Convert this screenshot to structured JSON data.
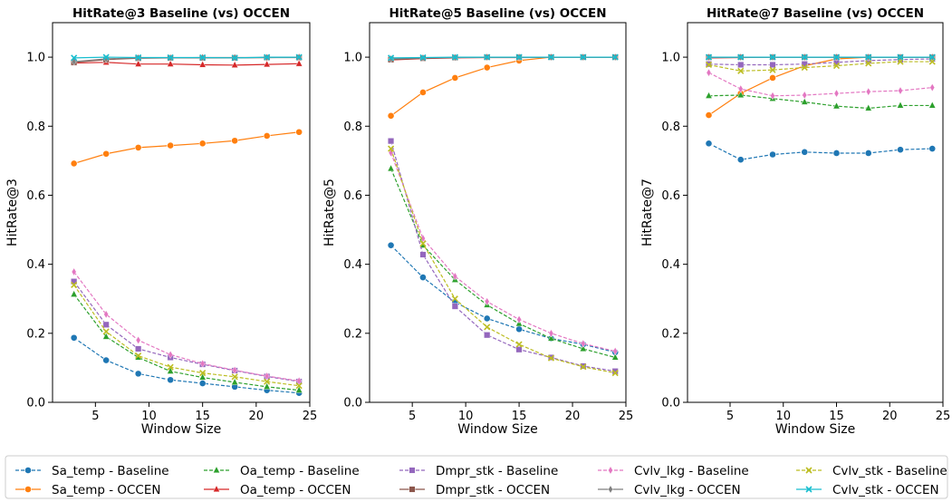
{
  "chart_data": [
    {
      "type": "line",
      "title": "HitRate@3 Baseline (vs) OCCEN",
      "xlabel": "Window Size",
      "ylabel": "HitRate@3",
      "xlim": [
        1,
        25
      ],
      "ylim": [
        0,
        1.1
      ],
      "xticks": [
        "5",
        "10",
        "15",
        "20",
        "25"
      ],
      "yticks": [
        "0.0",
        "0.2",
        "0.4",
        "0.6",
        "0.8",
        "1.0"
      ],
      "x": [
        3,
        6,
        9,
        12,
        15,
        18,
        21,
        24
      ],
      "series": [
        {
          "name": "Sa_temp - Baseline",
          "values": [
            0.187,
            0.122,
            0.083,
            0.065,
            0.055,
            0.045,
            0.035,
            0.027
          ]
        },
        {
          "name": "Sa_temp - OCCEN",
          "values": [
            0.692,
            0.72,
            0.738,
            0.744,
            0.75,
            0.758,
            0.772,
            0.783
          ]
        },
        {
          "name": "Oa_temp - Baseline",
          "values": [
            0.313,
            0.19,
            0.13,
            0.09,
            0.072,
            0.058,
            0.045,
            0.035
          ]
        },
        {
          "name": "Oa_temp - OCCEN",
          "values": [
            0.983,
            0.985,
            0.98,
            0.98,
            0.978,
            0.977,
            0.979,
            0.981
          ]
        },
        {
          "name": "Dmpr_stk - Baseline",
          "values": [
            0.35,
            0.225,
            0.155,
            0.13,
            0.11,
            0.092,
            0.075,
            0.06
          ]
        },
        {
          "name": "Dmpr_stk - OCCEN",
          "values": [
            0.985,
            0.993,
            0.997,
            0.998,
            0.998,
            0.998,
            0.999,
            0.999
          ]
        },
        {
          "name": "Cvlv_lkg - Baseline",
          "values": [
            0.378,
            0.255,
            0.18,
            0.138,
            0.112,
            0.093,
            0.076,
            0.062
          ]
        },
        {
          "name": "Cvlv_lkg - OCCEN",
          "values": [
            0.987,
            0.995,
            0.998,
            0.998,
            0.999,
            0.999,
            0.999,
            1.0
          ]
        },
        {
          "name": "Cvlv_stk - Baseline",
          "values": [
            0.34,
            0.205,
            0.135,
            0.102,
            0.085,
            0.074,
            0.06,
            0.048
          ]
        },
        {
          "name": "Cvlv_stk - OCCEN",
          "values": [
            0.998,
            1.0,
            0.999,
            0.999,
            0.999,
            0.998,
            1.0,
            1.0
          ]
        }
      ]
    },
    {
      "type": "line",
      "title": "HitRate@5 Baseline (vs) OCCEN",
      "xlabel": "Window Size",
      "ylabel": "HitRate@5",
      "xlim": [
        1,
        25
      ],
      "ylim": [
        0,
        1.1
      ],
      "xticks": [
        "5",
        "10",
        "15",
        "20",
        "25"
      ],
      "yticks": [
        "0.0",
        "0.2",
        "0.4",
        "0.6",
        "0.8",
        "1.0"
      ],
      "x": [
        3,
        6,
        9,
        12,
        15,
        18,
        21,
        24
      ],
      "series": [
        {
          "name": "Sa_temp - Baseline",
          "values": [
            0.455,
            0.362,
            0.29,
            0.243,
            0.212,
            0.185,
            0.168,
            0.145
          ]
        },
        {
          "name": "Sa_temp - OCCEN",
          "values": [
            0.83,
            0.898,
            0.94,
            0.97,
            0.99,
            1.0,
            1.0,
            1.0
          ]
        },
        {
          "name": "Oa_temp - Baseline",
          "values": [
            0.677,
            0.455,
            0.355,
            0.282,
            0.228,
            0.185,
            0.155,
            0.13
          ]
        },
        {
          "name": "Oa_temp - OCCEN",
          "values": [
            0.992,
            0.996,
            0.998,
            0.999,
            0.999,
            1.0,
            1.0,
            1.0
          ]
        },
        {
          "name": "Dmpr_stk - Baseline",
          "values": [
            0.757,
            0.428,
            0.278,
            0.195,
            0.153,
            0.13,
            0.105,
            0.09
          ]
        },
        {
          "name": "Dmpr_stk - OCCEN",
          "values": [
            0.993,
            0.997,
            0.999,
            1.0,
            1.0,
            1.0,
            1.0,
            1.0
          ]
        },
        {
          "name": "Cvlv_lkg - Baseline",
          "values": [
            0.723,
            0.475,
            0.365,
            0.292,
            0.24,
            0.2,
            0.17,
            0.148
          ]
        },
        {
          "name": "Cvlv_lkg - OCCEN",
          "values": [
            0.995,
            0.998,
            0.999,
            1.0,
            1.0,
            1.0,
            1.0,
            1.0
          ]
        },
        {
          "name": "Cvlv_stk - Baseline",
          "values": [
            0.735,
            0.46,
            0.3,
            0.218,
            0.168,
            0.128,
            0.103,
            0.085
          ]
        },
        {
          "name": "Cvlv_stk - OCCEN",
          "values": [
            0.998,
            0.999,
            1.0,
            1.0,
            1.0,
            1.0,
            1.0,
            1.0
          ]
        }
      ]
    },
    {
      "type": "line",
      "title": "HitRate@7 Baseline (vs) OCCEN",
      "xlabel": "Window Size",
      "ylabel": "HitRate@7",
      "xlim": [
        1,
        25
      ],
      "ylim": [
        0,
        1.1
      ],
      "xticks": [
        "5",
        "10",
        "15",
        "20",
        "25"
      ],
      "yticks": [
        "0.0",
        "0.2",
        "0.4",
        "0.6",
        "0.8",
        "1.0"
      ],
      "x": [
        3,
        6,
        9,
        12,
        15,
        18,
        21,
        24
      ],
      "series": [
        {
          "name": "Sa_temp - Baseline",
          "values": [
            0.75,
            0.703,
            0.718,
            0.725,
            0.722,
            0.722,
            0.732,
            0.735
          ]
        },
        {
          "name": "Sa_temp - OCCEN",
          "values": [
            0.832,
            0.895,
            0.94,
            0.975,
            0.995,
            1.0,
            1.0,
            1.0
          ]
        },
        {
          "name": "Oa_temp - Baseline",
          "values": [
            0.888,
            0.89,
            0.88,
            0.87,
            0.858,
            0.852,
            0.86,
            0.86
          ]
        },
        {
          "name": "Oa_temp - OCCEN",
          "values": [
            0.998,
            0.999,
            1.0,
            1.0,
            1.0,
            1.0,
            1.0,
            1.0
          ]
        },
        {
          "name": "Dmpr_stk - Baseline",
          "values": [
            0.98,
            0.978,
            0.978,
            0.98,
            0.985,
            0.99,
            0.993,
            0.995
          ]
        },
        {
          "name": "Dmpr_stk - OCCEN",
          "values": [
            1.0,
            1.0,
            1.0,
            1.0,
            1.0,
            1.0,
            1.0,
            1.0
          ]
        },
        {
          "name": "Cvlv_lkg - Baseline",
          "values": [
            0.955,
            0.908,
            0.888,
            0.89,
            0.895,
            0.9,
            0.903,
            0.912
          ]
        },
        {
          "name": "Cvlv_lkg - OCCEN",
          "values": [
            1.0,
            1.0,
            1.0,
            1.0,
            1.0,
            1.0,
            1.0,
            1.0
          ]
        },
        {
          "name": "Cvlv_stk - Baseline",
          "values": [
            0.978,
            0.96,
            0.963,
            0.97,
            0.975,
            0.982,
            0.987,
            0.987
          ]
        },
        {
          "name": "Cvlv_stk - OCCEN",
          "values": [
            1.0,
            1.0,
            1.0,
            1.0,
            1.0,
            1.0,
            1.0,
            1.0
          ]
        }
      ]
    }
  ],
  "legend": {
    "placement": "bottom",
    "entries": [
      {
        "label": "Sa_temp - Baseline",
        "color": "#1f77b4",
        "marker": "circle",
        "dashed": true
      },
      {
        "label": "Oa_temp - Baseline",
        "color": "#2ca02c",
        "marker": "triangle",
        "dashed": true
      },
      {
        "label": "Dmpr_stk - Baseline",
        "color": "#9467bd",
        "marker": "square",
        "dashed": true
      },
      {
        "label": "Cvlv_lkg - Baseline",
        "color": "#e377c2",
        "marker": "diamond",
        "dashed": true
      },
      {
        "label": "Cvlv_stk - Baseline",
        "color": "#bcbd22",
        "marker": "x",
        "dashed": true
      },
      {
        "label": "Sa_temp - OCCEN",
        "color": "#ff7f0e",
        "marker": "circle",
        "dashed": false
      },
      {
        "label": "Oa_temp - OCCEN",
        "color": "#d62728",
        "marker": "triangle",
        "dashed": false
      },
      {
        "label": "Dmpr_stk - OCCEN",
        "color": "#8c564b",
        "marker": "square",
        "dashed": false
      },
      {
        "label": "Cvlv_lkg - OCCEN",
        "color": "#7f7f7f",
        "marker": "diamond",
        "dashed": false
      },
      {
        "label": "Cvlv_stk - OCCEN",
        "color": "#17becf",
        "marker": "x",
        "dashed": false
      }
    ]
  }
}
